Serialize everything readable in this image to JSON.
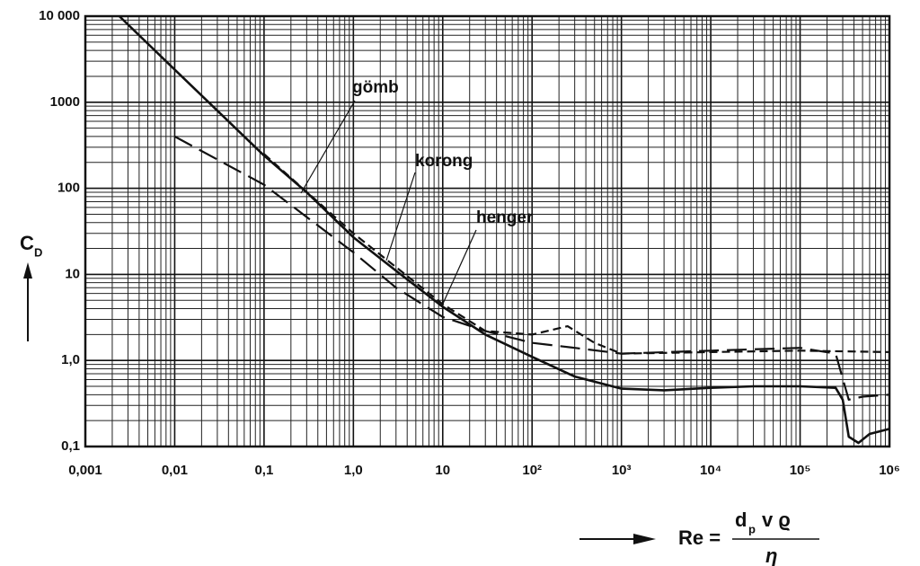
{
  "chart_data": {
    "type": "line",
    "xlabel": {
      "left": "Re =",
      "num_base": "d",
      "num_sub": "p",
      "num_rest": "v ϱ",
      "den": "η"
    },
    "ylabel": {
      "base": "C",
      "sub": "D"
    },
    "xscale": "log",
    "yscale": "log",
    "grid": true,
    "minor_grid": true,
    "xlim": [
      0.001,
      1000000
    ],
    "ylim": [
      0.1,
      10000
    ],
    "xticks": [
      {
        "value": 0.001,
        "label": "0,001"
      },
      {
        "value": 0.01,
        "label": "0,01"
      },
      {
        "value": 0.1,
        "label": "0,1"
      },
      {
        "value": 1,
        "label": "1,0"
      },
      10,
      {
        "value": 100,
        "label": "10²"
      },
      {
        "value": 1000,
        "label": "10³"
      },
      {
        "value": 10000,
        "label": "10⁴"
      },
      {
        "value": 100000,
        "label": "10⁵"
      },
      {
        "value": 1000000,
        "label": "10⁶"
      }
    ],
    "yticks": [
      {
        "value": 0.1,
        "label": "0,1"
      },
      {
        "value": 1,
        "label": "1,0"
      },
      10,
      100,
      1000,
      {
        "value": 10000,
        "label": "10 000"
      }
    ],
    "series": [
      {
        "name": "gömb",
        "color": "#111111",
        "style": "solid",
        "x": [
          0.0024,
          0.01,
          0.1,
          0.3,
          1,
          3,
          10,
          30,
          100,
          300,
          1000,
          3000,
          10000,
          30000,
          100000,
          250000,
          300000,
          350000,
          450000,
          600000,
          1000000
        ],
        "values": [
          10000,
          2400,
          240,
          90,
          27,
          11,
          4.2,
          2.0,
          1.1,
          0.65,
          0.47,
          0.45,
          0.48,
          0.5,
          0.5,
          0.48,
          0.35,
          0.13,
          0.11,
          0.14,
          0.16
        ]
      },
      {
        "name": "korong",
        "color": "#111111",
        "style": "dashed",
        "x": [
          0.1,
          1,
          10,
          30,
          100,
          250,
          500,
          1000,
          10000,
          100000,
          1000000
        ],
        "values": [
          250,
          30,
          4.5,
          2.2,
          2.0,
          2.5,
          1.6,
          1.2,
          1.25,
          1.3,
          1.25
        ]
      },
      {
        "name": "henger",
        "color": "#111111",
        "style": "longdash",
        "x": [
          0.01,
          0.1,
          1,
          3,
          10,
          30,
          100,
          300,
          1000,
          10000,
          100000,
          250000,
          350000,
          500000,
          1000000
        ],
        "values": [
          400,
          110,
          18,
          7,
          3.2,
          2.2,
          1.6,
          1.4,
          1.2,
          1.3,
          1.4,
          1.2,
          0.35,
          0.38,
          0.4
        ]
      }
    ]
  }
}
